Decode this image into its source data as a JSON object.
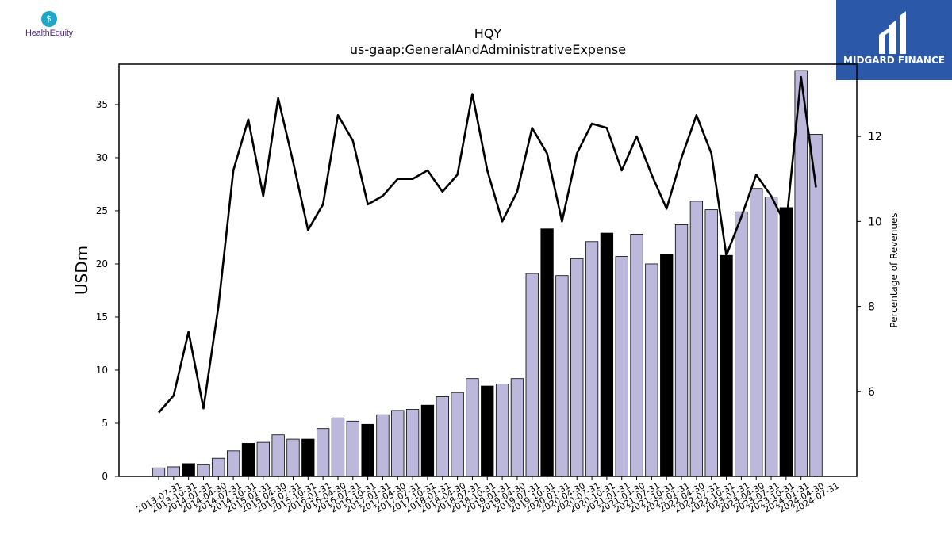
{
  "logos": {
    "left_text": "HealthEquity",
    "right_text": "MIDGARD FINANCE"
  },
  "colors": {
    "bar_regular": "#bcb8dc",
    "bar_highlight": "#000000",
    "line": "#000000",
    "right_logo_bg": "#2b58a8"
  },
  "chart_data": {
    "type": "bar",
    "title": "HQY",
    "subtitle": "us-gaap:GeneralAndAdministrativeExpense",
    "ylabel": "USDm",
    "y2label": "Percentage of Revenues",
    "ylim": [
      0,
      38.8
    ],
    "y2lim": [
      4.0,
      13.7
    ],
    "yticks": [
      0,
      5,
      10,
      15,
      20,
      25,
      30,
      35
    ],
    "y2ticks": [
      6,
      8,
      10,
      12
    ],
    "grid": false,
    "categories": [
      "2013-07-31",
      "2013-10-31",
      "2014-01-31",
      "2014-04-30",
      "2014-07-31",
      "2014-10-31",
      "2015-01-31",
      "2015-04-30",
      "2015-07-31",
      "2015-10-31",
      "2016-01-31",
      "2016-04-30",
      "2016-07-31",
      "2016-10-31",
      "2017-01-31",
      "2017-04-30",
      "2017-07-31",
      "2017-10-31",
      "2018-01-31",
      "2018-04-30",
      "2018-07-31",
      "2018-10-31",
      "2019-01-31",
      "2019-04-30",
      "2019-07-31",
      "2019-10-31",
      "2020-01-31",
      "2020-04-30",
      "2020-07-31",
      "2020-10-31",
      "2021-01-31",
      "2021-04-30",
      "2021-07-31",
      "2021-10-31",
      "2022-01-31",
      "2022-04-30",
      "2022-07-31",
      "2022-10-31",
      "2023-01-31",
      "2023-04-30",
      "2023-07-31",
      "2023-10-31",
      "2024-01-31",
      "2024-04-30",
      "2024-07-31"
    ],
    "series": [
      {
        "type": "bar",
        "values": [
          0.8,
          0.9,
          1.2,
          1.1,
          1.7,
          2.4,
          3.1,
          3.2,
          3.9,
          3.5,
          3.5,
          4.5,
          5.5,
          5.2,
          4.9,
          5.8,
          6.2,
          6.3,
          6.7,
          7.5,
          7.9,
          9.2,
          8.5,
          8.7,
          9.2,
          19.1,
          23.3,
          18.9,
          20.5,
          22.1,
          22.9,
          20.7,
          22.8,
          20.0,
          20.9,
          23.7,
          25.9,
          25.1,
          20.8,
          24.9,
          27.1,
          26.3,
          25.3,
          38.2,
          32.2
        ],
        "highlight": [
          false,
          false,
          true,
          false,
          false,
          false,
          true,
          false,
          false,
          false,
          true,
          false,
          false,
          false,
          true,
          false,
          false,
          false,
          true,
          false,
          false,
          false,
          true,
          false,
          false,
          false,
          true,
          false,
          false,
          false,
          true,
          false,
          false,
          false,
          true,
          false,
          false,
          false,
          true,
          false,
          false,
          false,
          true,
          false,
          false
        ]
      },
      {
        "type": "line",
        "name": "Percentage of Revenues",
        "axis": "right",
        "values": [
          5.5,
          5.9,
          7.4,
          5.6,
          8.0,
          11.2,
          12.4,
          10.6,
          12.9,
          11.4,
          9.8,
          10.4,
          12.5,
          11.9,
          10.4,
          10.6,
          11.0,
          11.0,
          11.2,
          10.7,
          11.1,
          13.0,
          11.2,
          10.0,
          10.7,
          12.2,
          11.6,
          10.0,
          11.6,
          12.3,
          12.2,
          11.2,
          12.0,
          11.1,
          10.3,
          11.5,
          12.5,
          11.6,
          9.2,
          10.1,
          11.1,
          10.6,
          9.9,
          13.4,
          10.8
        ]
      }
    ]
  }
}
